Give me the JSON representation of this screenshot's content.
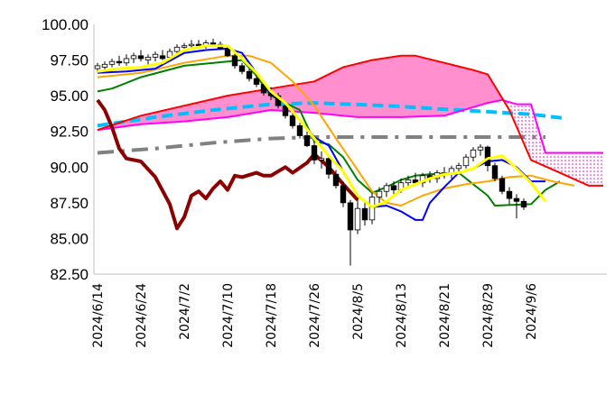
{
  "chart_data": {
    "type": "line",
    "title": "",
    "xlabel": "",
    "ylabel": "",
    "ylim": [
      82.5,
      100
    ],
    "y_ticks": [
      "100.00",
      "97.50",
      "95.00",
      "92.50",
      "90.00",
      "87.50",
      "85.00",
      "82.50"
    ],
    "x_ticks": [
      "2024/6/14",
      "2024/6/24",
      "2024/7/2",
      "2024/7/10",
      "2024/7/18",
      "2024/7/26",
      "2024/8/5",
      "2024/8/13",
      "2024/8/21",
      "2024/8/29",
      "2024/9/6"
    ],
    "x_tick_index": [
      0,
      6,
      12,
      18,
      24,
      30,
      36,
      42,
      48,
      54,
      60
    ],
    "x_axis_length": 70,
    "grid": false,
    "legend": "none",
    "series": [
      {
        "role": "tenkan",
        "color": "#ffff00",
        "points": [
          [
            0,
            96.7
          ],
          [
            3,
            96.9
          ],
          [
            6,
            97.0
          ],
          [
            9,
            97.3
          ],
          [
            12,
            98.2
          ],
          [
            15,
            98.5
          ],
          [
            18,
            98.5
          ],
          [
            20,
            97.6
          ],
          [
            22,
            96.6
          ],
          [
            24,
            95.3
          ],
          [
            26,
            94.5
          ],
          [
            28,
            93.3
          ],
          [
            30,
            92.0
          ],
          [
            32,
            90.8
          ],
          [
            34,
            89.7
          ],
          [
            36,
            88.0
          ],
          [
            38,
            87.2
          ],
          [
            40,
            87.6
          ],
          [
            42,
            88.4
          ],
          [
            44,
            88.8
          ],
          [
            46,
            89.2
          ],
          [
            48,
            89.5
          ],
          [
            50,
            89.6
          ],
          [
            52,
            89.9
          ],
          [
            54,
            90.6
          ],
          [
            56,
            90.8
          ],
          [
            58,
            89.9
          ],
          [
            60,
            88.9
          ],
          [
            62,
            87.6
          ]
        ]
      },
      {
        "role": "kijun",
        "color": "#0000ff",
        "points": [
          [
            0,
            96.6
          ],
          [
            4,
            96.7
          ],
          [
            8,
            96.9
          ],
          [
            12,
            98.0
          ],
          [
            15,
            98.2
          ],
          [
            18,
            98.3
          ],
          [
            20,
            98.0
          ],
          [
            22,
            96.6
          ],
          [
            24,
            95.1
          ],
          [
            26,
            94.5
          ],
          [
            28,
            93.3
          ],
          [
            30,
            92.1
          ],
          [
            32,
            91.5
          ],
          [
            34,
            89.7
          ],
          [
            36,
            88.0
          ],
          [
            38,
            87.2
          ],
          [
            40,
            87.3
          ],
          [
            42,
            86.9
          ],
          [
            44,
            86.3
          ],
          [
            45,
            86.3
          ],
          [
            46,
            87.5
          ],
          [
            48,
            88.6
          ],
          [
            50,
            89.6
          ],
          [
            52,
            89.9
          ],
          [
            54,
            90.4
          ],
          [
            56,
            90.5
          ],
          [
            58,
            90.0
          ],
          [
            60,
            89.0
          ],
          [
            62,
            89.0
          ]
        ]
      },
      {
        "role": "senkou_b",
        "color": "#008000",
        "points": [
          [
            0,
            95.3
          ],
          [
            2,
            95.5
          ],
          [
            6,
            96.3
          ],
          [
            12,
            97.1
          ],
          [
            18,
            97.4
          ],
          [
            20,
            97.5
          ],
          [
            22,
            96.4
          ],
          [
            24,
            95.0
          ],
          [
            26,
            94.5
          ],
          [
            28,
            94.0
          ],
          [
            30,
            91.8
          ],
          [
            32,
            91.6
          ],
          [
            34,
            90.7
          ],
          [
            36,
            89.1
          ],
          [
            38,
            88.2
          ],
          [
            40,
            88.6
          ],
          [
            42,
            89.1
          ],
          [
            44,
            89.4
          ],
          [
            46,
            89.5
          ],
          [
            50,
            89.6
          ],
          [
            52,
            88.8
          ],
          [
            54,
            88.0
          ],
          [
            55,
            87.3
          ],
          [
            60,
            87.4
          ],
          [
            62,
            88.4
          ],
          [
            64,
            89.0
          ]
        ]
      },
      {
        "role": "moving_average",
        "color": "#ffa500",
        "points": [
          [
            0,
            96.3
          ],
          [
            6,
            96.6
          ],
          [
            12,
            97.3
          ],
          [
            18,
            97.8
          ],
          [
            21,
            97.8
          ],
          [
            24,
            97.3
          ],
          [
            27,
            96.0
          ],
          [
            30,
            94.3
          ],
          [
            33,
            92.0
          ],
          [
            36,
            89.8
          ],
          [
            38,
            88.3
          ],
          [
            40,
            87.5
          ],
          [
            42,
            87.3
          ],
          [
            45,
            88.0
          ],
          [
            48,
            88.5
          ],
          [
            51,
            88.8
          ],
          [
            54,
            89.0
          ],
          [
            57,
            89.3
          ],
          [
            60,
            89.4
          ],
          [
            63,
            89.0
          ],
          [
            66,
            88.7
          ]
        ]
      },
      {
        "role": "cloud_span_a",
        "color": "#ff00ff",
        "points": [
          [
            0,
            92.6
          ],
          [
            6,
            93.0
          ],
          [
            12,
            93.2
          ],
          [
            18,
            93.5
          ],
          [
            24,
            94.0
          ],
          [
            30,
            93.8
          ],
          [
            36,
            93.5
          ],
          [
            42,
            93.5
          ],
          [
            48,
            93.6
          ],
          [
            52,
            94.2
          ],
          [
            54,
            94.5
          ],
          [
            56,
            94.7
          ],
          [
            58,
            94.4
          ],
          [
            60,
            94.4
          ],
          [
            62,
            91.0
          ],
          [
            70,
            91.0
          ]
        ]
      },
      {
        "role": "cloud_span_b",
        "color": "#ff0000",
        "points": [
          [
            0,
            92.6
          ],
          [
            6,
            93.6
          ],
          [
            12,
            94.3
          ],
          [
            18,
            95.0
          ],
          [
            24,
            95.5
          ],
          [
            30,
            96.0
          ],
          [
            34,
            97.0
          ],
          [
            38,
            97.5
          ],
          [
            42,
            97.8
          ],
          [
            44,
            97.8
          ],
          [
            48,
            97.3
          ],
          [
            52,
            96.8
          ],
          [
            54,
            96.5
          ],
          [
            57,
            94.0
          ],
          [
            60,
            90.5
          ],
          [
            64,
            89.6
          ],
          [
            68,
            88.7
          ],
          [
            70,
            88.7
          ]
        ]
      },
      {
        "role": "chikou",
        "color": "#8b0000",
        "points": [
          [
            0,
            94.7
          ],
          [
            1,
            94.0
          ],
          [
            2,
            92.8
          ],
          [
            3,
            91.3
          ],
          [
            4,
            90.6
          ],
          [
            6,
            90.4
          ],
          [
            8,
            89.3
          ],
          [
            10,
            87.4
          ],
          [
            11,
            85.7
          ],
          [
            12,
            86.5
          ],
          [
            13,
            88.0
          ],
          [
            14,
            88.3
          ],
          [
            15,
            87.8
          ],
          [
            16,
            88.5
          ],
          [
            17,
            89.0
          ],
          [
            18,
            88.4
          ],
          [
            19,
            89.4
          ],
          [
            20,
            89.3
          ],
          [
            22,
            89.6
          ],
          [
            23,
            89.4
          ],
          [
            24,
            89.4
          ],
          [
            26,
            90.0
          ],
          [
            27,
            89.6
          ],
          [
            29,
            90.3
          ],
          [
            30,
            90.9
          ],
          [
            32,
            90.0
          ],
          [
            34,
            88.8
          ],
          [
            36,
            87.7
          ]
        ]
      },
      {
        "role": "average_dashed",
        "color": "#00bfff",
        "dash": "dash",
        "points": [
          [
            0,
            92.9
          ],
          [
            8,
            93.5
          ],
          [
            16,
            94.0
          ],
          [
            24,
            94.4
          ],
          [
            30,
            94.5
          ],
          [
            40,
            94.3
          ],
          [
            50,
            94.0
          ],
          [
            60,
            93.7
          ],
          [
            65,
            93.4
          ]
        ]
      },
      {
        "role": "average_dashdot",
        "color": "#808080",
        "dash": "dashdot",
        "points": [
          [
            0,
            91.0
          ],
          [
            8,
            91.3
          ],
          [
            16,
            91.7
          ],
          [
            24,
            92.0
          ],
          [
            30,
            92.1
          ],
          [
            38,
            92.1
          ],
          [
            46,
            92.1
          ],
          [
            54,
            92.1
          ],
          [
            62,
            92.1
          ]
        ]
      }
    ],
    "candles": [
      [
        96.9,
        97.3,
        96.7,
        97.1
      ],
      [
        97.0,
        97.4,
        96.8,
        97.2
      ],
      [
        97.2,
        97.6,
        97.0,
        97.4
      ],
      [
        97.4,
        97.8,
        97.1,
        97.3
      ],
      [
        97.3,
        97.9,
        97.1,
        97.6
      ],
      [
        97.6,
        98.0,
        97.3,
        97.8
      ],
      [
        97.8,
        98.2,
        97.4,
        97.6
      ],
      [
        97.5,
        97.9,
        97.2,
        97.7
      ],
      [
        97.7,
        98.1,
        97.4,
        97.9
      ],
      [
        97.8,
        98.2,
        97.5,
        97.6
      ],
      [
        97.7,
        98.3,
        97.5,
        98.1
      ],
      [
        98.1,
        98.6,
        97.9,
        98.4
      ],
      [
        98.4,
        98.7,
        98.1,
        98.5
      ],
      [
        98.5,
        98.9,
        98.2,
        98.6
      ],
      [
        98.6,
        98.9,
        98.3,
        98.5
      ],
      [
        98.5,
        98.9,
        98.3,
        98.7
      ],
      [
        98.7,
        99.0,
        98.4,
        98.6
      ],
      [
        98.6,
        98.8,
        98.2,
        98.3
      ],
      [
        98.3,
        98.5,
        97.7,
        97.8
      ],
      [
        97.8,
        98.0,
        96.9,
        97.1
      ],
      [
        97.1,
        97.3,
        96.5,
        96.7
      ],
      [
        96.7,
        96.9,
        96.0,
        96.2
      ],
      [
        96.2,
        96.5,
        95.6,
        95.8
      ],
      [
        95.8,
        96.0,
        95.0,
        95.2
      ],
      [
        95.2,
        95.6,
        94.7,
        95.0
      ],
      [
        95.0,
        95.2,
        94.1,
        94.3
      ],
      [
        94.3,
        94.6,
        93.4,
        93.6
      ],
      [
        93.6,
        93.9,
        92.7,
        92.9
      ],
      [
        92.9,
        93.1,
        92.0,
        92.2
      ],
      [
        92.2,
        92.5,
        91.4,
        91.5
      ],
      [
        91.5,
        91.8,
        90.2,
        90.5
      ],
      [
        90.5,
        91.1,
        89.9,
        90.6
      ],
      [
        90.6,
        90.9,
        89.2,
        89.5
      ],
      [
        89.5,
        89.8,
        88.5,
        88.7
      ],
      [
        88.7,
        89.0,
        87.2,
        87.5
      ],
      [
        87.5,
        87.7,
        83.1,
        85.6
      ],
      [
        85.6,
        87.8,
        85.3,
        87.1
      ],
      [
        87.1,
        87.7,
        85.9,
        86.3
      ],
      [
        86.3,
        88.2,
        86.0,
        87.9
      ],
      [
        87.9,
        88.6,
        87.4,
        88.3
      ],
      [
        88.3,
        88.9,
        87.9,
        88.7
      ],
      [
        88.7,
        89.0,
        88.1,
        88.4
      ],
      [
        88.4,
        89.2,
        88.2,
        88.9
      ],
      [
        88.9,
        89.4,
        88.5,
        89.1
      ],
      [
        89.1,
        89.6,
        88.7,
        88.9
      ],
      [
        88.9,
        89.6,
        88.6,
        89.4
      ],
      [
        89.4,
        89.7,
        88.9,
        89.2
      ],
      [
        89.2,
        89.8,
        88.9,
        89.6
      ],
      [
        89.6,
        90.0,
        89.2,
        89.5
      ],
      [
        89.5,
        90.1,
        89.2,
        89.9
      ],
      [
        89.9,
        90.3,
        89.5,
        90.1
      ],
      [
        90.1,
        90.9,
        89.9,
        90.7
      ],
      [
        90.7,
        91.4,
        90.4,
        91.2
      ],
      [
        91.2,
        91.6,
        90.8,
        91.4
      ],
      [
        91.4,
        91.5,
        89.7,
        90.1
      ],
      [
        90.1,
        90.3,
        89.0,
        89.2
      ],
      [
        89.2,
        89.4,
        88.1,
        88.3
      ],
      [
        88.3,
        88.6,
        87.4,
        87.8
      ],
      [
        87.8,
        88.1,
        86.4,
        87.6
      ],
      [
        87.6,
        87.8,
        87.0,
        87.2
      ]
    ]
  }
}
